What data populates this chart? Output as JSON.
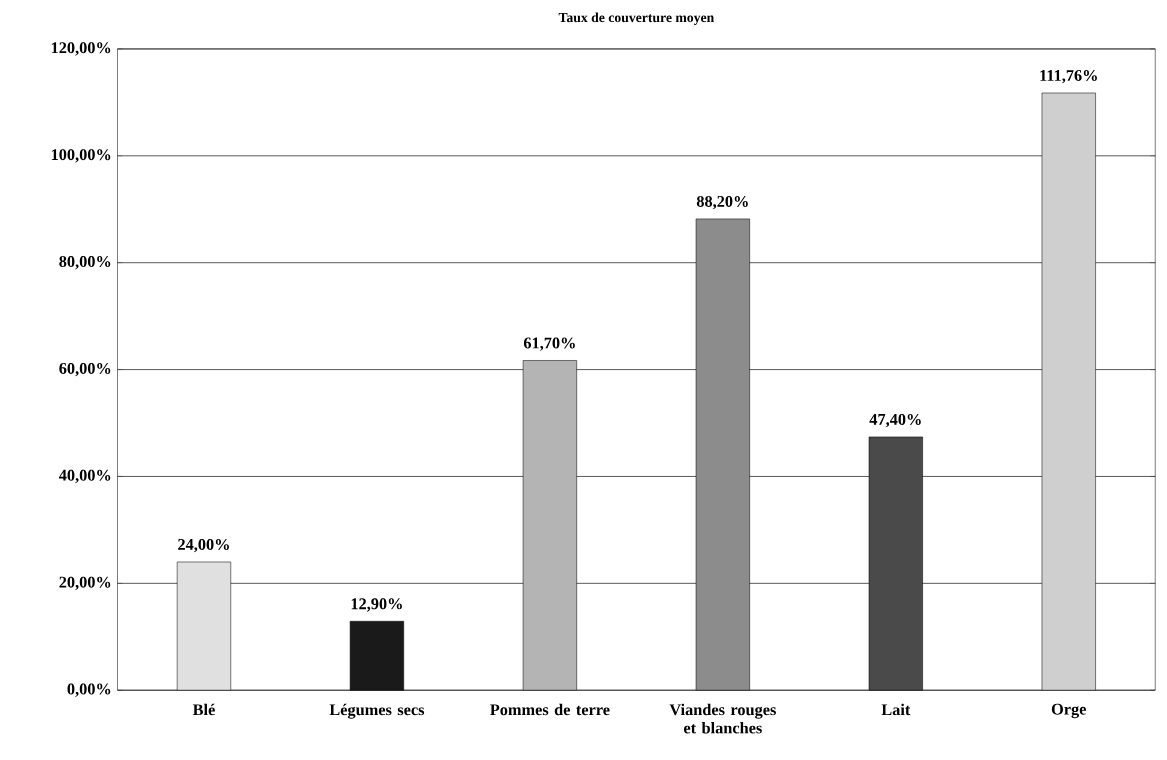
{
  "chart_data": {
    "type": "bar",
    "title": "Taux de couverture moyen",
    "categories": [
      "Blé",
      "Légumes secs",
      "Pommes de terre",
      "Viandes rouges et blanches",
      "Lait",
      "Orge"
    ],
    "values": [
      24.0,
      12.9,
      61.7,
      88.2,
      47.4,
      111.76
    ],
    "value_labels": [
      "24,00%",
      "12,90%",
      "61,70%",
      "88,20%",
      "47,40%",
      "111,76%"
    ],
    "colors": [
      "#e0e0e0",
      "#1a1a1a",
      "#b4b4b4",
      "#8c8c8c",
      "#4a4a4a",
      "#cfcfcf"
    ],
    "ylim": [
      0,
      120
    ],
    "yticks": [
      {
        "value": 0,
        "label": "0,00%"
      },
      {
        "value": 20,
        "label": "20,00%"
      },
      {
        "value": 40,
        "label": "40,00%"
      },
      {
        "value": 60,
        "label": "60,00%"
      },
      {
        "value": 80,
        "label": "80,00%"
      },
      {
        "value": 100,
        "label": "100,00%"
      },
      {
        "value": 120,
        "label": "120,00%"
      }
    ],
    "grid": "y"
  }
}
